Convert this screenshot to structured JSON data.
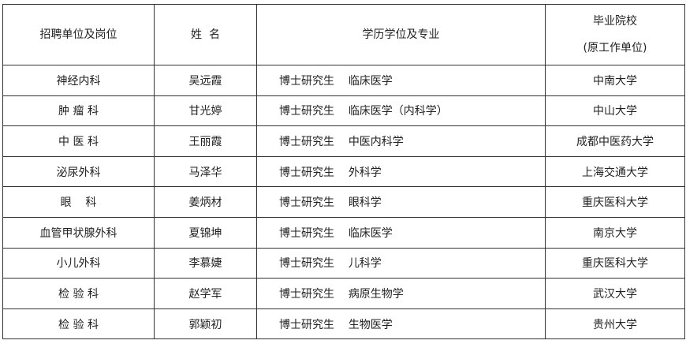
{
  "header": {
    "unit": "招聘单位及岗位",
    "name": "姓  名",
    "degree": "学历学位及专业",
    "school_line1": "毕业院校",
    "school_line2": "(原工作单位)"
  },
  "rows": [
    {
      "unit": "神经内科",
      "name": "吴远霞",
      "degree": "博士研究生",
      "major": "临床医学",
      "school": "中南大学"
    },
    {
      "unit": "肿 瘤 科",
      "name": "甘光婷",
      "degree": "博士研究生",
      "major": "临床医学（内科学）",
      "school": "中山大学"
    },
    {
      "unit": "中 医 科",
      "name": "王丽霞",
      "degree": "博士研究生",
      "major": "中医内科学",
      "school": "成都中医药大学"
    },
    {
      "unit": "泌尿外科",
      "name": "马泽华",
      "degree": "博士研究生",
      "major": "外科学",
      "school": "上海交通大学"
    },
    {
      "unit": "眼    科",
      "name": "姜炳材",
      "degree": "博士研究生",
      "major": "眼科学",
      "school": "重庆医科大学"
    },
    {
      "unit": "血管甲状腺外科",
      "name": "夏锦坤",
      "degree": "博士研究生",
      "major": "临床医学",
      "school": "南京大学"
    },
    {
      "unit": "小儿外科",
      "name": "李慕婕",
      "degree": "博士研究生",
      "major": "儿科学",
      "school": "重庆医科大学"
    },
    {
      "unit": "检 验 科",
      "name": "赵学军",
      "degree": "博士研究生",
      "major": "病原生物学",
      "school": "武汉大学"
    },
    {
      "unit": "检 验 科",
      "name": "郭颖初",
      "degree": "博士研究生",
      "major": "生物医学",
      "school": "贵州大学"
    }
  ]
}
